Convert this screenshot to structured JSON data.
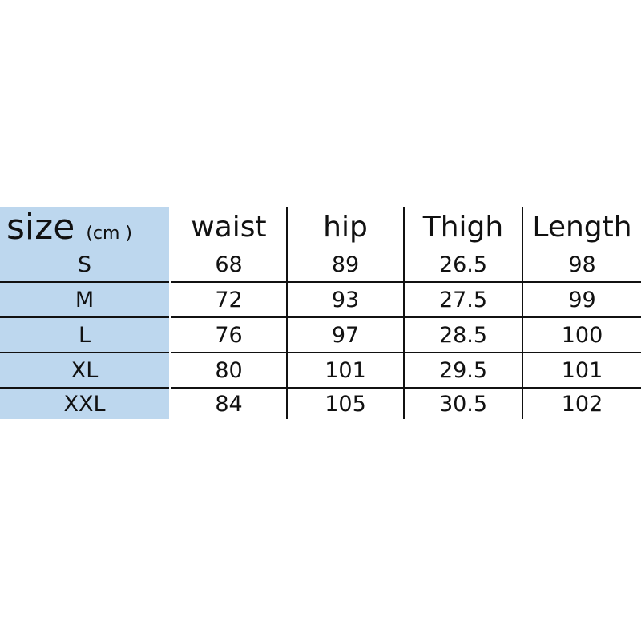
{
  "header": {
    "size_label": "size",
    "unit_label": "(cm )",
    "columns": [
      "waist",
      "hip",
      "Thigh",
      "Length"
    ]
  },
  "rows": [
    {
      "size": "S",
      "waist": "68",
      "hip": "89",
      "thigh": "26.5",
      "length": "98"
    },
    {
      "size": "M",
      "waist": "72",
      "hip": "93",
      "thigh": "27.5",
      "length": "99"
    },
    {
      "size": "L",
      "waist": "76",
      "hip": "97",
      "thigh": "28.5",
      "length": "100"
    },
    {
      "size": "XL",
      "waist": "80",
      "hip": "101",
      "thigh": "29.5",
      "length": "101"
    },
    {
      "size": "XXL",
      "waist": "84",
      "hip": "105",
      "thigh": "30.5",
      "length": "102"
    }
  ],
  "colors": {
    "size_column_bg": "#bdd7ee",
    "border": "#111111"
  }
}
